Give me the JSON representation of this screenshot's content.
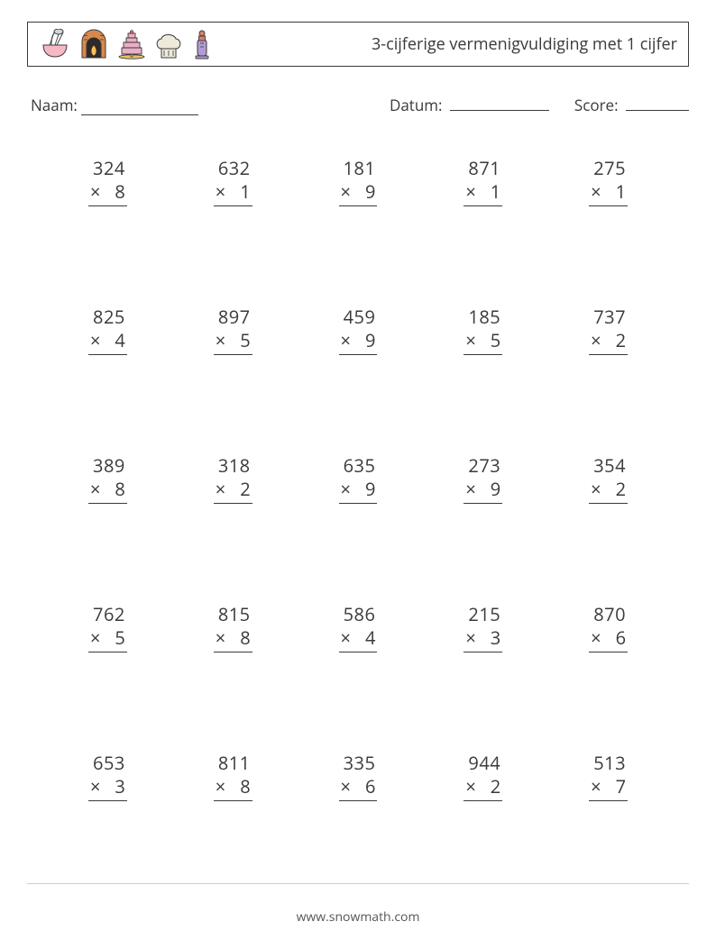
{
  "header": {
    "title": "3-cijferige vermenigvuldiging met 1 cijfer",
    "icons": [
      "mixing-bowl-icon",
      "fireplace-icon",
      "cake-icon",
      "chef-hat-icon",
      "pepper-mill-icon"
    ]
  },
  "labels": {
    "name": "Naam:",
    "date": "Datum:",
    "score": "Score:"
  },
  "blank_widths": {
    "name": 130,
    "date": 110,
    "score": 70
  },
  "symbol": "×",
  "problems": [
    {
      "a": "324",
      "b": "8"
    },
    {
      "a": "632",
      "b": "1"
    },
    {
      "a": "181",
      "b": "9"
    },
    {
      "a": "871",
      "b": "1"
    },
    {
      "a": "275",
      "b": "1"
    },
    {
      "a": "825",
      "b": "4"
    },
    {
      "a": "897",
      "b": "5"
    },
    {
      "a": "459",
      "b": "9"
    },
    {
      "a": "185",
      "b": "5"
    },
    {
      "a": "737",
      "b": "2"
    },
    {
      "a": "389",
      "b": "8"
    },
    {
      "a": "318",
      "b": "2"
    },
    {
      "a": "635",
      "b": "9"
    },
    {
      "a": "273",
      "b": "9"
    },
    {
      "a": "354",
      "b": "2"
    },
    {
      "a": "762",
      "b": "5"
    },
    {
      "a": "815",
      "b": "8"
    },
    {
      "a": "586",
      "b": "4"
    },
    {
      "a": "215",
      "b": "3"
    },
    {
      "a": "870",
      "b": "6"
    },
    {
      "a": "653",
      "b": "3"
    },
    {
      "a": "811",
      "b": "8"
    },
    {
      "a": "335",
      "b": "6"
    },
    {
      "a": "944",
      "b": "2"
    },
    {
      "a": "513",
      "b": "7"
    }
  ],
  "footer": {
    "text": "www.snowmath.com"
  },
  "colors": {
    "text": "#3a3a3a",
    "background": "#ffffff",
    "icon_bowl_pink": "#f7b8c5",
    "icon_bowl_whisk": "#cfd6dc",
    "icon_fire_brick": "#d98a4a",
    "icon_fire_flame": "#f9c154",
    "icon_cake": "#e9afc5",
    "icon_cake_stand": "#e6c06a",
    "icon_hat": "#efe9dc",
    "icon_mill_body": "#b39bd6",
    "icon_mill_top": "#d37f6b"
  }
}
